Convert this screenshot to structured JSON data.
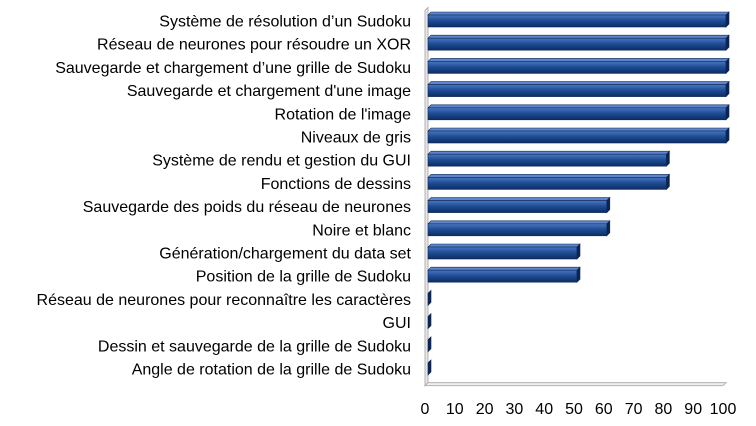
{
  "chart_data": {
    "type": "bar",
    "orientation": "horizontal",
    "title": "",
    "xlabel": "",
    "ylabel": "",
    "categories": [
      "Système de résolution d’un Sudoku",
      "Réseau de neurones pour résoudre un XOR",
      "Sauvegarde et chargement d’une grille de Sudoku",
      "Sauvegarde et chargement d'une image",
      "Rotation de l'image",
      "Niveaux de gris",
      "Système de rendu et gestion du GUI",
      "Fonctions de dessins",
      "Sauvegarde des poids du réseau de neurones",
      "Noire et blanc",
      "Génération/chargement du data set",
      "Position de la grille de Sudoku",
      "Réseau de neurones pour reconnaître les caractères",
      "GUI",
      "Dessin et sauvegarde de la grille de Sudoku",
      "Angle de rotation de la grille de Sudoku"
    ],
    "values": [
      100,
      100,
      100,
      100,
      100,
      100,
      80,
      80,
      60,
      60,
      50,
      50,
      0,
      0,
      0,
      0
    ],
    "xlim": [
      0,
      100
    ],
    "xticks": [
      "0",
      "10",
      "20",
      "30",
      "40",
      "50",
      "60",
      "70",
      "80",
      "90",
      "100"
    ],
    "grid": false,
    "legend": "none",
    "bar_color": "#1f4e96",
    "bar_edge_color": "#0e2a5c",
    "axis_color": "#b3b3b3"
  }
}
